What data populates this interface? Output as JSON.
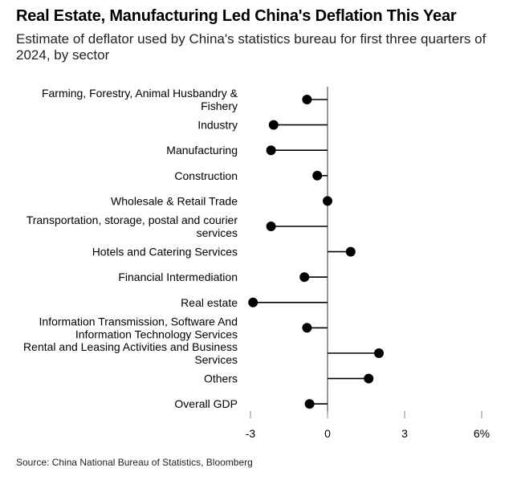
{
  "header": {
    "title": "Real Estate, Manufacturing Led China's Deflation This Year",
    "subtitle": "Estimate of deflator used by China's statistics bureau for first three quarters of 2024, by sector"
  },
  "footer": {
    "source": "Source: China National Bureau of Statistics, Bloomberg"
  },
  "colors": {
    "dot": "#000000",
    "stem": "#000000",
    "zero_line": "#555555",
    "tick": "#888888"
  },
  "chart_data": {
    "type": "scatter",
    "orientation": "horizontal-lollipop",
    "categories": [
      [
        "Farming, Forestry, Animal Husbandry &",
        "Fishery"
      ],
      [
        "Industry"
      ],
      [
        "Manufacturing"
      ],
      [
        "Construction"
      ],
      [
        "Wholesale & Retail Trade"
      ],
      [
        "Transportation, storage, postal and courier",
        "services"
      ],
      [
        "Hotels and Catering Services"
      ],
      [
        "Financial Intermediation"
      ],
      [
        "Real estate"
      ],
      [
        "Information Transmission, Software And",
        "Information Technology Services"
      ],
      [
        "Rental and Leasing Activities and Business",
        "Services"
      ],
      [
        "Others"
      ],
      [
        "Overall GDP"
      ]
    ],
    "values": [
      -0.8,
      -2.1,
      -2.2,
      -0.4,
      0.0,
      -2.2,
      0.9,
      -0.9,
      -2.9,
      -0.8,
      2.0,
      1.6,
      -0.7
    ],
    "xlim": [
      -3,
      6
    ],
    "xticks": [
      -3,
      0,
      3,
      6
    ],
    "xtick_labels": [
      "-3",
      "0",
      "3",
      "6%"
    ],
    "xlabel": "",
    "ylabel": "",
    "grid": false
  }
}
